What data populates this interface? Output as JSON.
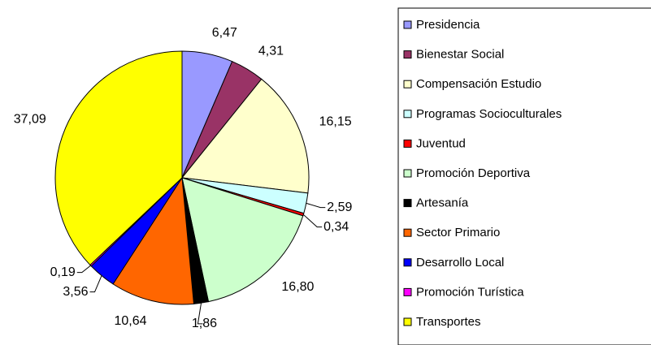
{
  "chart_data": {
    "type": "pie",
    "categories": [
      "Presidencia",
      "Bienestar Social",
      "Compensación Estudio",
      "Programas Socioculturales",
      "Juventud",
      "Promoción Deportiva",
      "Artesanía",
      "Sector Primario",
      "Desarrollo Local",
      "Promoción Turística",
      "Transportes"
    ],
    "values": [
      6.47,
      4.31,
      16.15,
      2.59,
      0.34,
      16.8,
      1.86,
      10.64,
      3.56,
      0.19,
      37.09
    ],
    "value_labels": [
      "6,47",
      "4,31",
      "16,15",
      "2,59",
      "0,34",
      "16,80",
      "1,86",
      "10,64",
      "3,56",
      "0,19",
      "37,09"
    ],
    "colors": [
      "#9999ff",
      "#993366",
      "#ffffcc",
      "#ccffff",
      "#ff0000",
      "#ccffcc",
      "#000000",
      "#ff6600",
      "#0000ff",
      "#ff00ff",
      "#ffff00"
    ],
    "legend": "right"
  }
}
